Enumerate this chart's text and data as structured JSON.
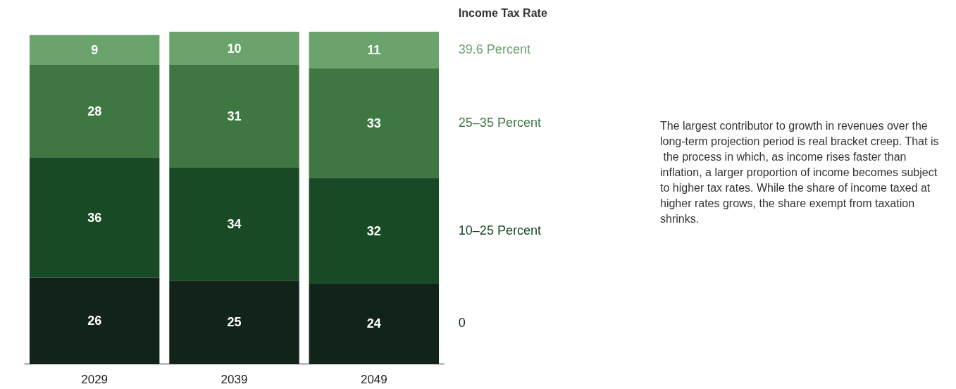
{
  "chart_data": {
    "type": "bar",
    "stacked": true,
    "data_labels": true,
    "legend": "right",
    "legend_title": "Income Tax Rate",
    "tick_labels": "x",
    "categories": [
      "2029",
      "2039",
      "2049"
    ],
    "series": [
      {
        "name": "0",
        "color": "#12241a",
        "values": [
          26,
          25,
          24
        ]
      },
      {
        "name": "10–25 Percent",
        "color": "#184a25",
        "values": [
          36,
          34,
          32
        ]
      },
      {
        "name": "25–35 Percent",
        "color": "#3f7743",
        "values": [
          28,
          31,
          33
        ]
      },
      {
        "name": "39.6 Percent",
        "color": "#6aa36b",
        "values": [
          9,
          10,
          11
        ]
      }
    ],
    "annotations": [
      "The largest contributor to growth in revenues over the long-term projection period is real bracket creep. That is the process in which, as income rises faster than inflation, a larger proportion of income becomes subject to higher tax rates. While the share of income taxed at higher rates grows, the share exempt from taxation shrinks."
    ]
  }
}
